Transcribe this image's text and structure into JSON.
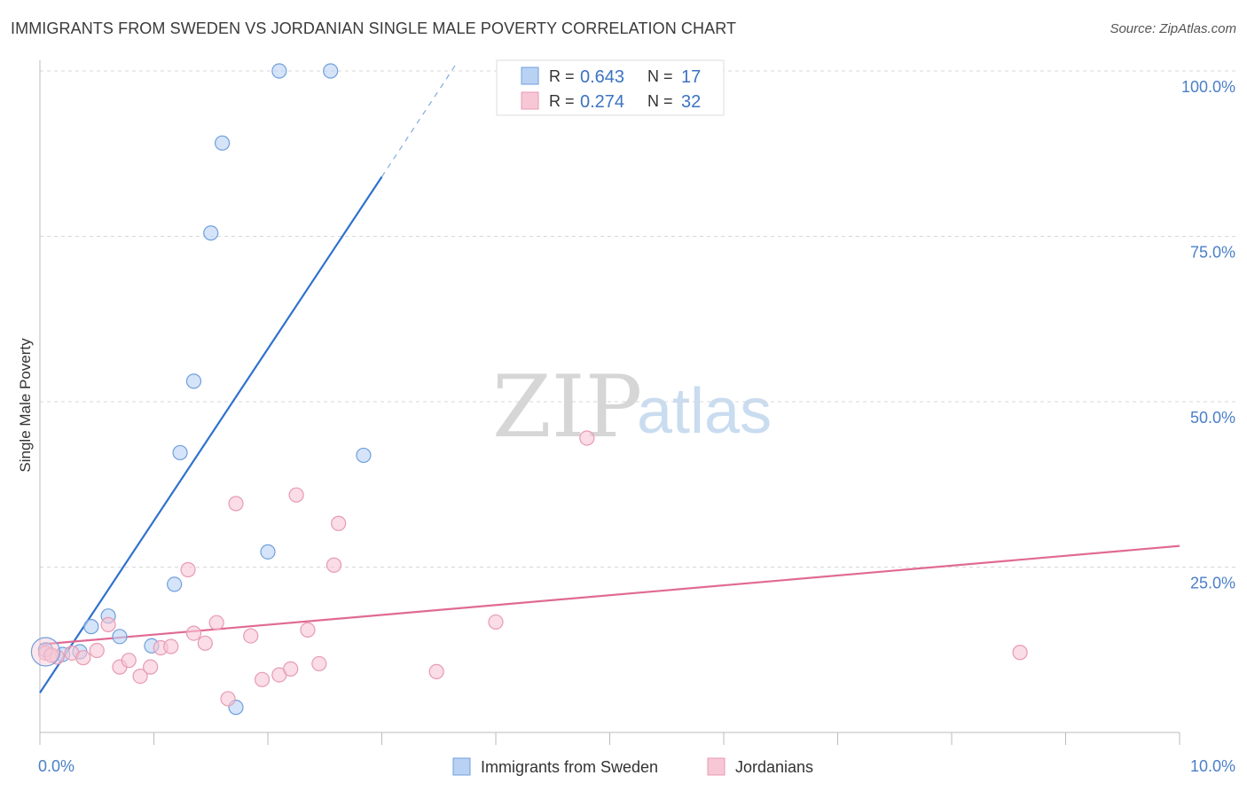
{
  "header": {
    "title": "IMMIGRANTS FROM SWEDEN VS JORDANIAN SINGLE MALE POVERTY CORRELATION CHART",
    "source": "Source: ZipAtlas.com"
  },
  "watermark": {
    "zip": "ZIP",
    "atlas": "atlas"
  },
  "colors": {
    "blue_fill": "#b9d2f3",
    "blue_stroke": "#6f9fdc",
    "blue_line": "#2f72cc",
    "pink_fill": "#f7c7d5",
    "pink_stroke": "#e89ab3",
    "pink_line": "#e06a94",
    "grid": "#d7d7d7",
    "tick_text": "#4a7fc7"
  },
  "chart_data": {
    "type": "scatter",
    "title": "IMMIGRANTS FROM SWEDEN VS JORDANIAN SINGLE MALE POVERTY CORRELATION CHART",
    "xlabel": "",
    "ylabel": "Single Male Poverty",
    "xlim": [
      0,
      10
    ],
    "ylim": [
      0,
      102
    ],
    "x_tick_labels": [
      "0.0%",
      "10.0%"
    ],
    "x_tick_values": [
      0,
      10
    ],
    "y_tick_labels": [
      "25.0%",
      "50.0%",
      "75.0%",
      "100.0%"
    ],
    "y_tick_values": [
      25,
      50,
      75,
      100
    ],
    "grid": true,
    "legend_placement": "top-center",
    "stats": [
      {
        "series": "Immigrants from Sweden",
        "r_label": "R =",
        "r": "0.643",
        "n_label": "N =",
        "n": "17"
      },
      {
        "series": "Jordanians",
        "r_label": "R =",
        "r": "0.274",
        "n_label": "N =",
        "n": "32"
      }
    ],
    "series": [
      {
        "name": "Immigrants from Sweden",
        "color": "blue",
        "points": [
          [
            0.05,
            12.5
          ],
          [
            0.2,
            11.8
          ],
          [
            0.35,
            12.2
          ],
          [
            0.45,
            16.0
          ],
          [
            0.6,
            17.6
          ],
          [
            0.7,
            14.5
          ],
          [
            0.98,
            13.1
          ],
          [
            1.18,
            22.4
          ],
          [
            1.23,
            42.3
          ],
          [
            1.35,
            53.1
          ],
          [
            1.5,
            75.5
          ],
          [
            1.6,
            89.1
          ],
          [
            1.72,
            3.8
          ],
          [
            2.0,
            27.3
          ],
          [
            2.1,
            100.0
          ],
          [
            2.55,
            100.0
          ],
          [
            2.84,
            41.9
          ]
        ],
        "trend": {
          "x": [
            0.0,
            3.0
          ],
          "y": [
            6.0,
            84.0
          ],
          "dashed_to": {
            "x": 3.65,
            "y": 101.0
          }
        }
      },
      {
        "name": "Jordanians",
        "color": "pink",
        "points": [
          [
            0.05,
            12.0
          ],
          [
            0.15,
            11.4
          ],
          [
            0.28,
            12.0
          ],
          [
            0.38,
            11.3
          ],
          [
            0.5,
            12.4
          ],
          [
            0.6,
            16.3
          ],
          [
            0.7,
            9.9
          ],
          [
            0.78,
            10.9
          ],
          [
            0.88,
            8.5
          ],
          [
            0.97,
            9.9
          ],
          [
            1.06,
            12.8
          ],
          [
            1.15,
            13.0
          ],
          [
            1.3,
            24.6
          ],
          [
            1.35,
            15.0
          ],
          [
            1.45,
            13.5
          ],
          [
            1.55,
            16.6
          ],
          [
            1.65,
            5.1
          ],
          [
            1.72,
            34.6
          ],
          [
            1.85,
            14.6
          ],
          [
            1.95,
            8.0
          ],
          [
            2.1,
            8.7
          ],
          [
            2.2,
            9.6
          ],
          [
            2.25,
            35.9
          ],
          [
            2.35,
            15.5
          ],
          [
            2.45,
            10.4
          ],
          [
            2.58,
            25.3
          ],
          [
            2.62,
            31.6
          ],
          [
            3.48,
            9.2
          ],
          [
            4.0,
            16.7
          ],
          [
            4.8,
            44.5
          ],
          [
            8.6,
            12.1
          ],
          [
            0.1,
            11.7
          ]
        ],
        "trend": {
          "x": [
            0.0,
            10.0
          ],
          "y": [
            13.3,
            28.2
          ]
        }
      }
    ],
    "legend": [
      "Immigrants from Sweden",
      "Jordanians"
    ]
  }
}
